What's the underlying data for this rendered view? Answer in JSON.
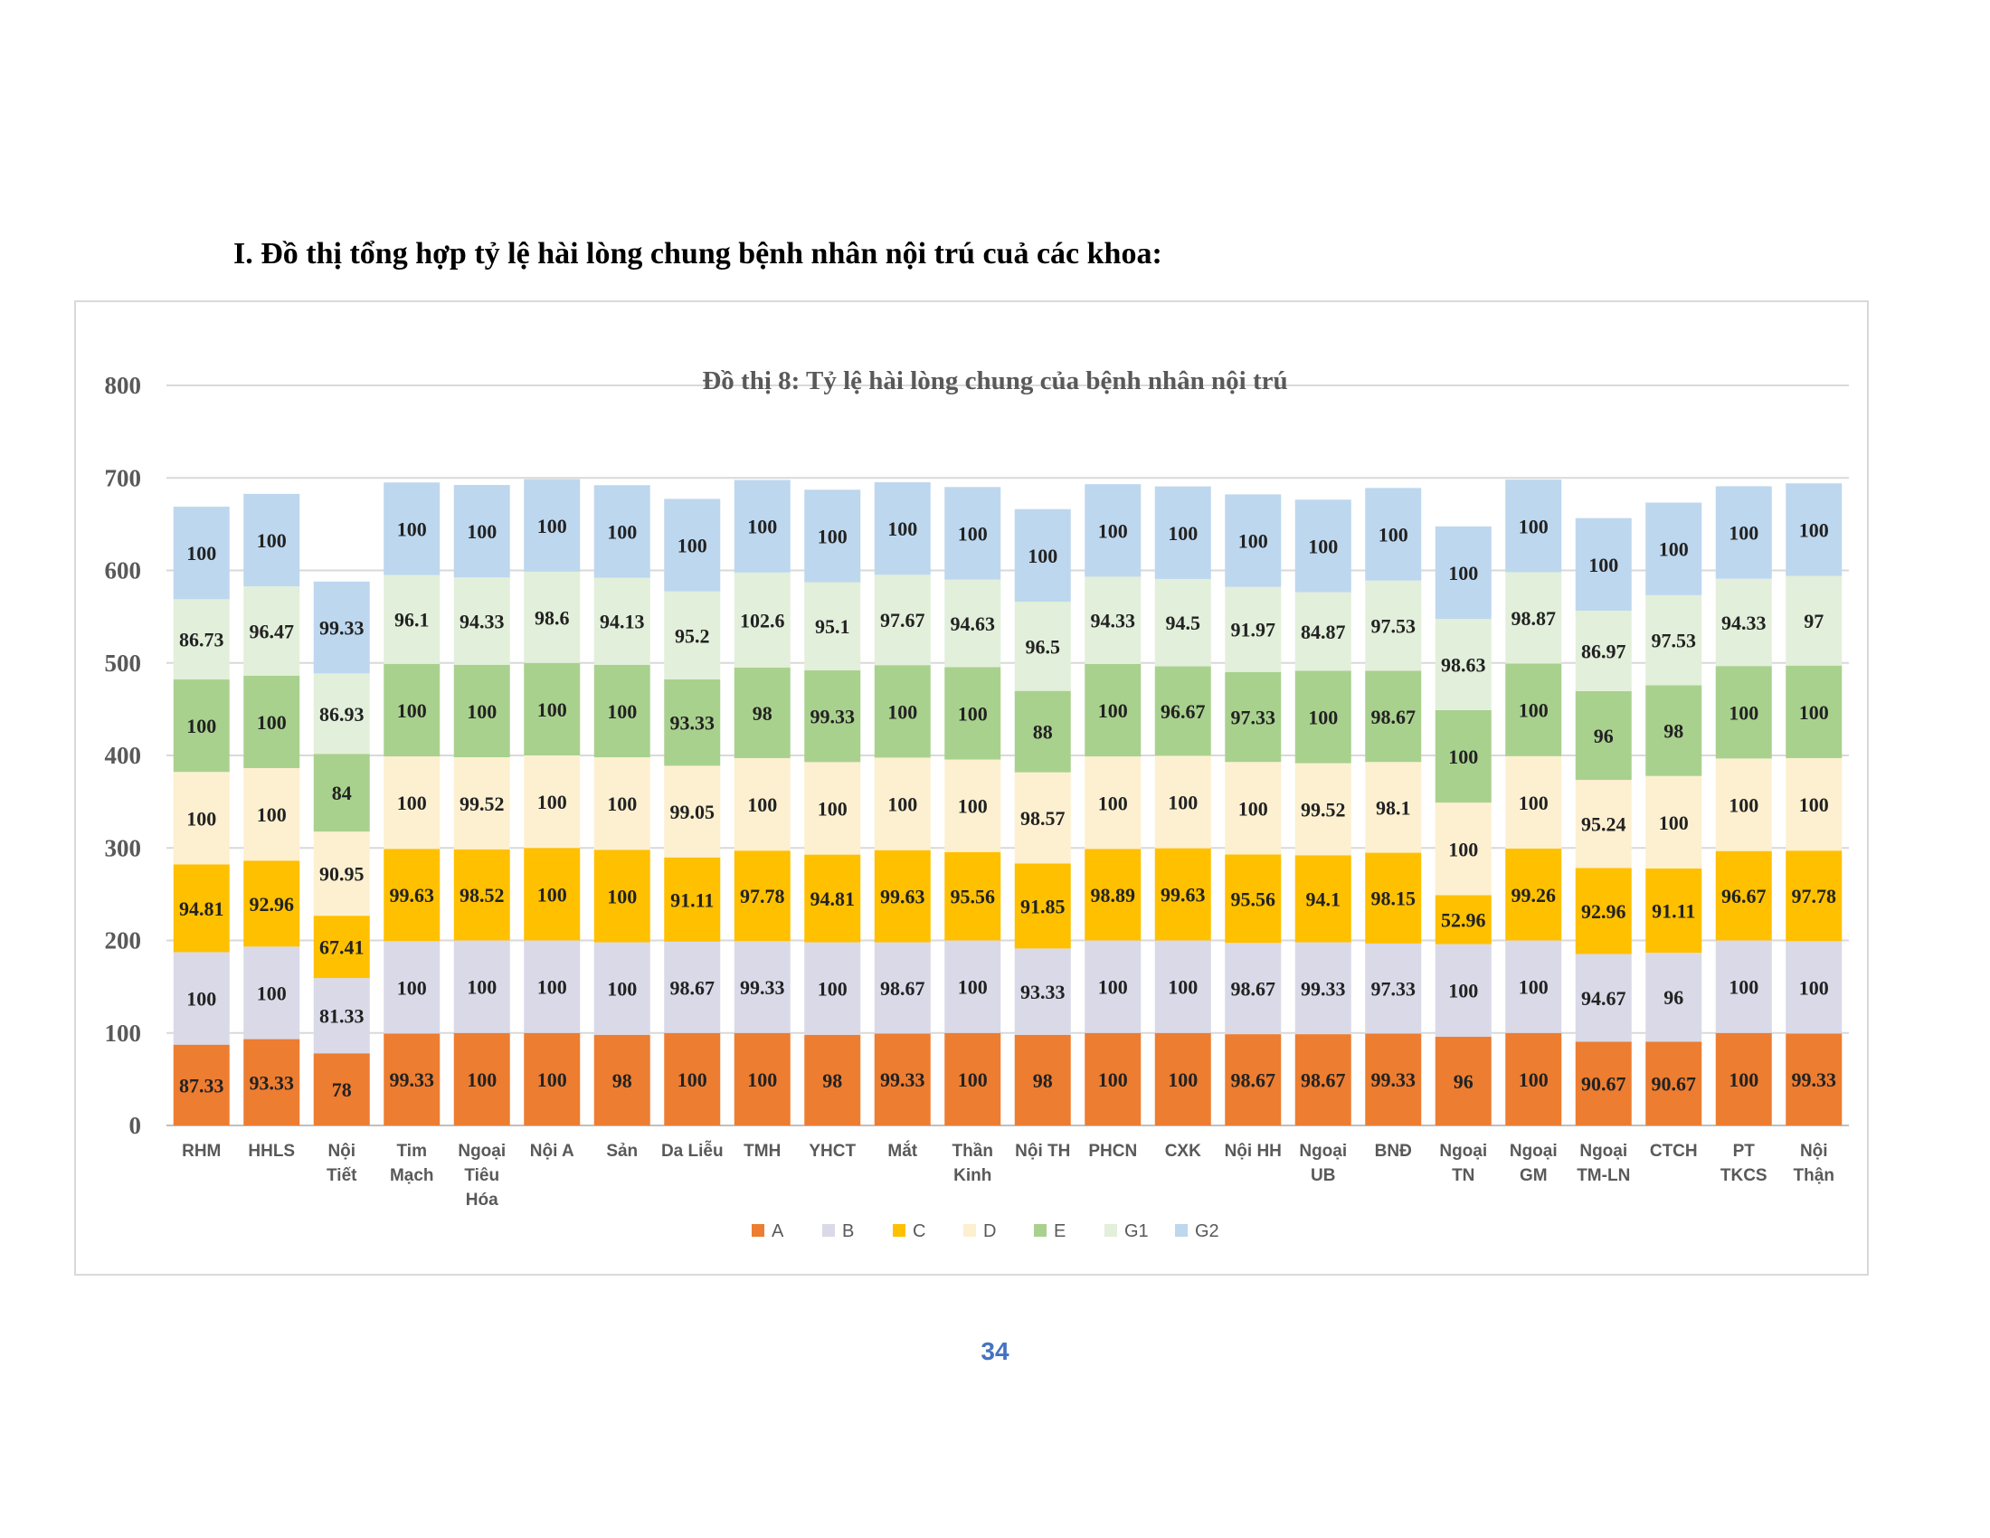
{
  "heading": "I.  Đồ thị tổng hợp tỷ lệ hài lòng chung bệnh nhân nội trú cuả các khoa:",
  "page_number": "34",
  "chart_data": {
    "type": "bar",
    "stacked": true,
    "title": "Đồ thị 8: Tỷ lệ hài lòng chung của bệnh nhân nội trú",
    "xlabel": "",
    "ylabel": "",
    "ylim": [
      0,
      800
    ],
    "yticks": [
      0,
      100,
      200,
      300,
      400,
      500,
      600,
      700,
      800
    ],
    "grid": true,
    "legend_position": "bottom",
    "categories": [
      [
        "RHM"
      ],
      [
        "HHLS"
      ],
      [
        "Nội",
        "Tiết"
      ],
      [
        "Tim",
        "Mạch"
      ],
      [
        "Ngoại",
        "Tiêu",
        "Hóa"
      ],
      [
        "Nội A"
      ],
      [
        "Sản"
      ],
      [
        "Da Liễu"
      ],
      [
        "TMH"
      ],
      [
        "YHCT"
      ],
      [
        "Mắt"
      ],
      [
        "Thần",
        "Kinh"
      ],
      [
        "Nội TH"
      ],
      [
        "PHCN"
      ],
      [
        "CXK"
      ],
      [
        "Nội HH"
      ],
      [
        "Ngoại",
        "UB"
      ],
      [
        "BNĐ"
      ],
      [
        "Ngoại",
        "TN"
      ],
      [
        "Ngoại",
        "GM"
      ],
      [
        "Ngoại",
        "TM-LN"
      ],
      [
        "CTCH"
      ],
      [
        "PT",
        "TKCS"
      ],
      [
        "Nội",
        "Thận"
      ]
    ],
    "series": [
      {
        "name": "A",
        "color": "#ed7d31",
        "values": [
          87.33,
          93.33,
          78,
          99.33,
          100,
          100,
          98,
          100,
          100,
          98,
          99.33,
          100,
          98,
          100,
          100,
          98.67,
          98.67,
          99.33,
          96,
          100,
          90.67,
          90.67,
          100,
          99.33
        ]
      },
      {
        "name": "B",
        "color": "#d9d9e8",
        "values": [
          100,
          100,
          81.33,
          100,
          100,
          100,
          100,
          98.67,
          99.33,
          100,
          98.67,
          100,
          93.33,
          100,
          100,
          98.67,
          99.33,
          97.33,
          100,
          100,
          94.67,
          96,
          100,
          100
        ]
      },
      {
        "name": "C",
        "color": "#ffc000",
        "values": [
          94.81,
          92.96,
          67.41,
          99.63,
          98.52,
          100,
          100,
          91.11,
          97.78,
          94.81,
          99.63,
          95.56,
          91.85,
          98.89,
          99.63,
          95.56,
          94.1,
          98.15,
          52.96,
          99.26,
          92.96,
          91.11,
          96.67,
          97.78
        ]
      },
      {
        "name": "D",
        "color": "#fdf0d0",
        "values": [
          100,
          100,
          90.95,
          100,
          99.52,
          100,
          100,
          99.05,
          100,
          100,
          100,
          100,
          98.57,
          100,
          100,
          100,
          99.52,
          98.1,
          100,
          100,
          95.24,
          100,
          100,
          100
        ]
      },
      {
        "name": "E",
        "color": "#a9d18e",
        "values": [
          100,
          100,
          84,
          100,
          100,
          100,
          100,
          93.33,
          98,
          99.33,
          100,
          100,
          88,
          100,
          96.67,
          97.33,
          100,
          98.67,
          100,
          100,
          96,
          98,
          100,
          100
        ]
      },
      {
        "name": "G1",
        "color": "#e2efda",
        "values": [
          86.73,
          96.47,
          86.93,
          96.1,
          94.33,
          98.6,
          94.13,
          95.2,
          102.6,
          95.1,
          97.67,
          94.63,
          96.5,
          94.33,
          94.5,
          91.97,
          84.87,
          97.53,
          98.63,
          98.87,
          86.97,
          97.53,
          94.33,
          97
        ]
      },
      {
        "name": "G2",
        "color": "#bdd7ee",
        "values": [
          100,
          100,
          99.33,
          100,
          100,
          100,
          100,
          100,
          100,
          100,
          100,
          100,
          100,
          100,
          100,
          100,
          100,
          100,
          100,
          100,
          100,
          100,
          100,
          100
        ]
      }
    ]
  }
}
